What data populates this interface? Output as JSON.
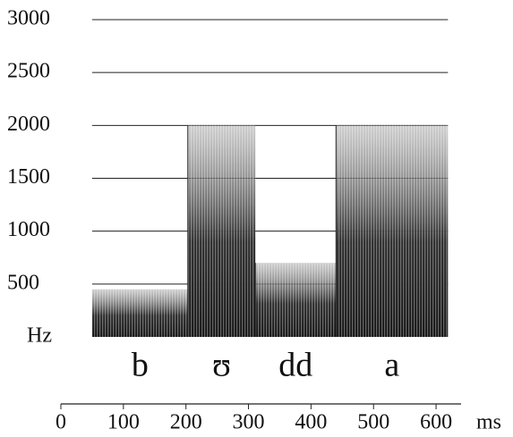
{
  "chart_data": {
    "type": "spectrogram",
    "x_label": "ms",
    "y_label": "Hz",
    "xlim": [
      0,
      640
    ],
    "ylim": [
      0,
      3000
    ],
    "xticks": [
      0,
      100,
      200,
      300,
      400,
      500,
      600
    ],
    "yticks": [
      500,
      1000,
      1500,
      2000,
      2500,
      3000
    ],
    "grid": true,
    "color": "#222222",
    "segments": [
      {
        "label": "b",
        "start": 50,
        "end": 203,
        "energy_top": 450
      },
      {
        "label": "ʊ",
        "start": 203,
        "end": 311,
        "energy_top": 2000
      },
      {
        "label": "dd",
        "start": 311,
        "end": 440,
        "energy_top": 700
      },
      {
        "label": "a",
        "start": 440,
        "end": 619,
        "energy_top": 2000
      }
    ]
  }
}
